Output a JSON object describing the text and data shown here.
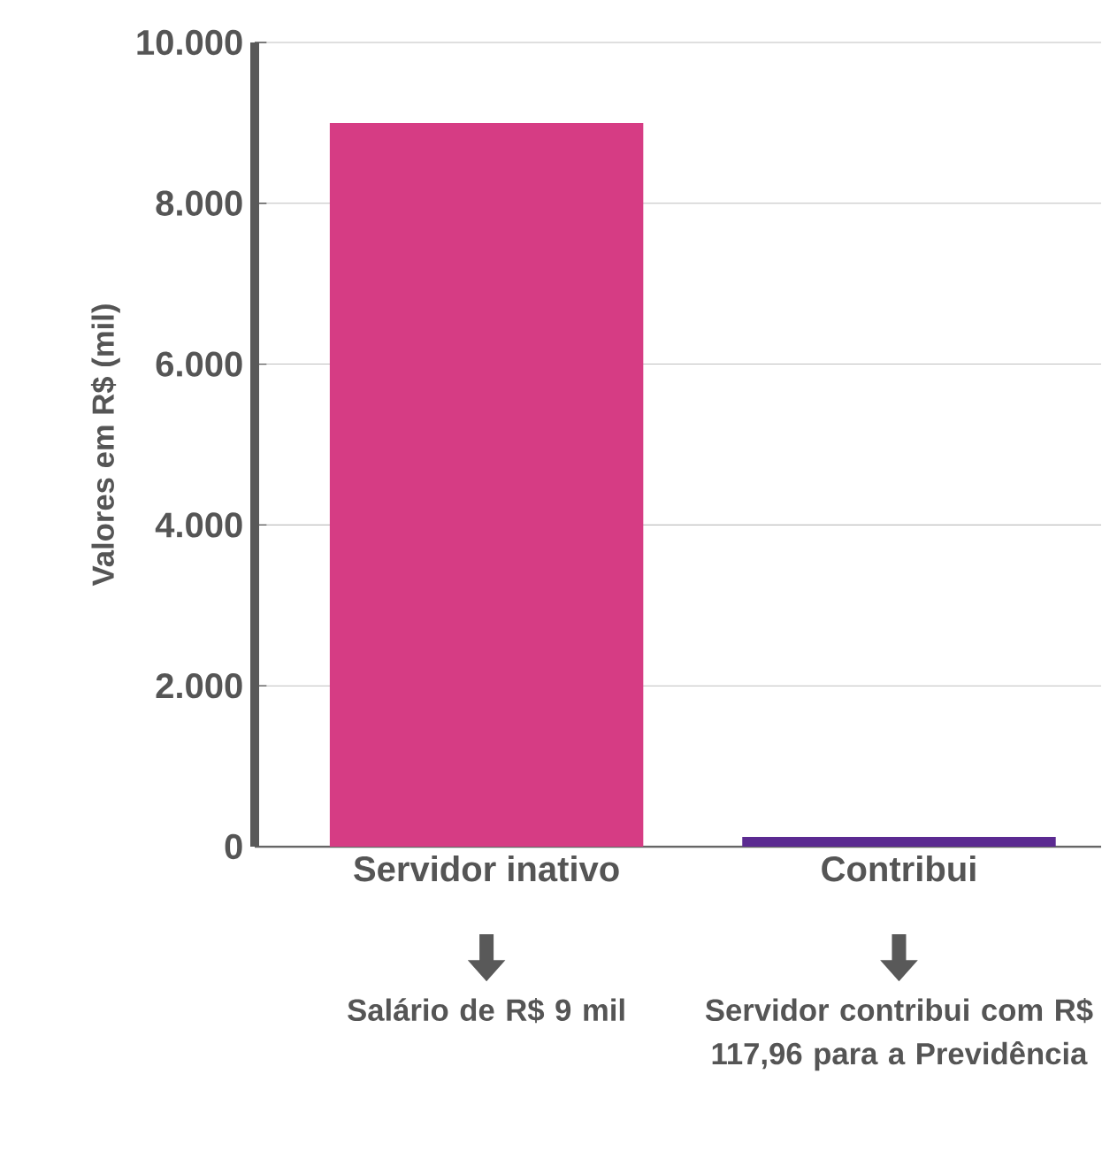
{
  "chart_data": {
    "type": "bar",
    "ylabel": "Valores em R$ (mil)",
    "categories": [
      "Servidor inativo",
      "Contribui"
    ],
    "values": [
      9000,
      120
    ],
    "colors": [
      "#d63c84",
      "#5b2a91"
    ],
    "ylim": [
      0,
      10000
    ],
    "yticks": [
      0,
      {
        "value": 2000,
        "label": "2.000"
      },
      {
        "value": 4000,
        "label": "4.000"
      },
      {
        "value": 6000,
        "label": "6.000"
      },
      {
        "value": 8000,
        "label": "8.000"
      },
      {
        "value": 10000,
        "label": "10.000"
      }
    ],
    "grid": "y",
    "annotations": [
      "Salário de R$ 9 mil",
      "Servidor contribui com R$ 117,96 para a Previdência"
    ]
  }
}
